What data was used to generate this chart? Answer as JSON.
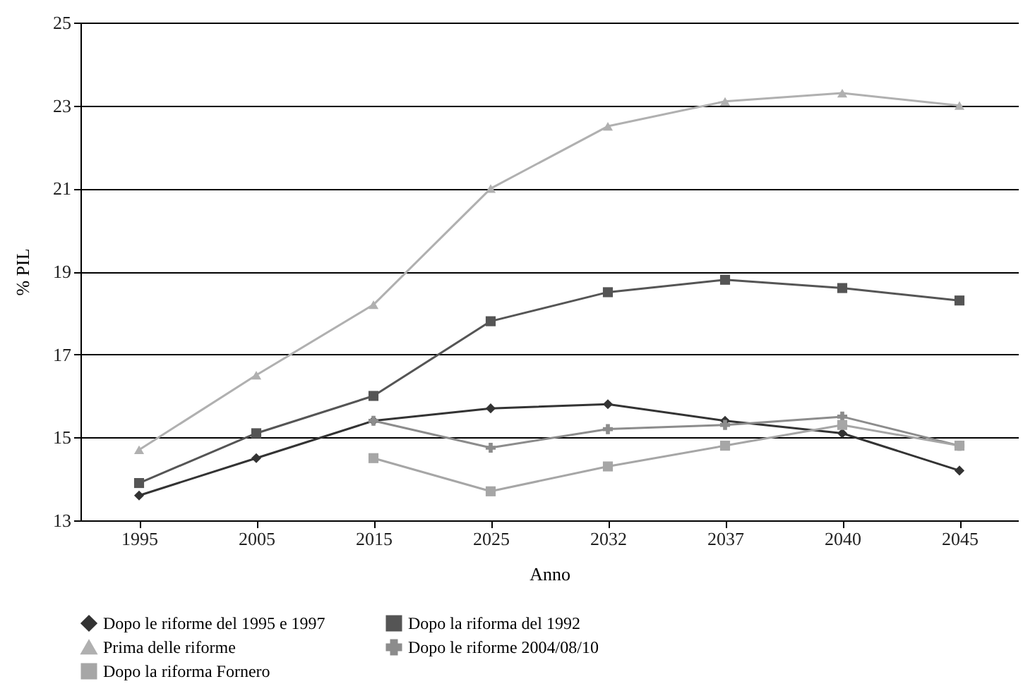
{
  "chart_data": {
    "type": "line",
    "xlabel": "Anno",
    "ylabel": "% PIL",
    "categories": [
      "1995",
      "2005",
      "2015",
      "2025",
      "2032",
      "2037",
      "2040",
      "2045"
    ],
    "ylim": [
      13,
      25
    ],
    "yticks": [
      13,
      15,
      17,
      19,
      21,
      23,
      25
    ],
    "grid": "y",
    "legend": "bottom",
    "series": [
      {
        "name": "Dopo le riforme del 1995 e 1997",
        "color": "#333333",
        "marker": "diamond",
        "values": [
          13.6,
          14.5,
          15.4,
          15.7,
          15.8,
          15.4,
          15.1,
          14.2
        ]
      },
      {
        "name": "Dopo la riforma del 1992",
        "color": "#555555",
        "marker": "square",
        "values": [
          13.9,
          15.1,
          16.0,
          17.8,
          18.5,
          18.8,
          18.6,
          18.3
        ]
      },
      {
        "name": "Prima delle riforme",
        "color": "#b0b0b0",
        "marker": "triangle",
        "values": [
          14.7,
          16.5,
          18.2,
          21.0,
          22.5,
          23.1,
          23.3,
          23.0
        ]
      },
      {
        "name": "Dopo le riforme 2004/08/10",
        "color": "#8c8c8c",
        "marker": "cross",
        "values": [
          null,
          null,
          15.4,
          14.75,
          15.2,
          15.3,
          15.5,
          14.8
        ]
      },
      {
        "name": "Dopo la riforma Fornero",
        "color": "#a6a6a6",
        "marker": "square",
        "values": [
          null,
          null,
          14.5,
          13.7,
          14.3,
          14.8,
          15.3,
          14.8
        ]
      }
    ]
  }
}
